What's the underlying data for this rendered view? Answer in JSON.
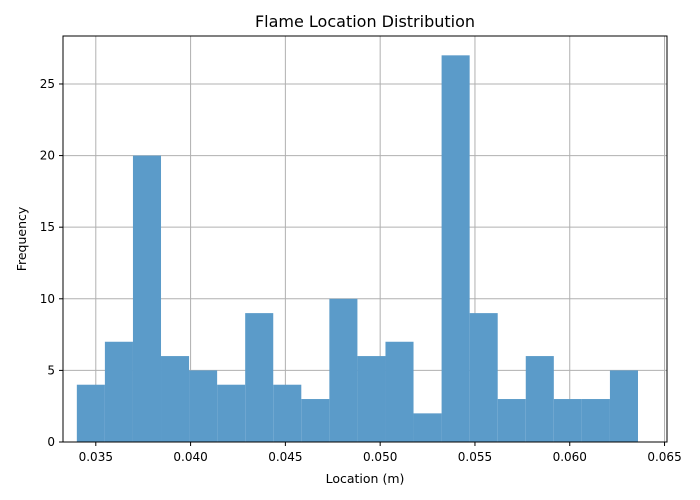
{
  "chart_data": {
    "type": "bar",
    "title": "Flame Location Distribution",
    "xlabel": "Location (m)",
    "ylabel": "Frequency",
    "bin_start": 0.034,
    "bin_width": 0.00148,
    "values": [
      4,
      7,
      20,
      6,
      5,
      4,
      9,
      4,
      3,
      10,
      6,
      7,
      2,
      27,
      9,
      3,
      6,
      3,
      3,
      5
    ],
    "xlim": [
      0.03327,
      0.06513
    ],
    "ylim": [
      0,
      28.35
    ],
    "x_ticks": [
      0.035,
      0.04,
      0.045,
      0.05,
      0.055,
      0.06,
      0.065
    ],
    "x_tick_labels": [
      "0.035",
      "0.040",
      "0.045",
      "0.050",
      "0.055",
      "0.060",
      "0.065"
    ],
    "y_ticks": [
      0,
      5,
      10,
      15,
      20,
      25
    ],
    "y_tick_labels": [
      "0",
      "5",
      "10",
      "15",
      "20",
      "25"
    ],
    "bar_color": "#5b9bc9",
    "grid": true
  }
}
